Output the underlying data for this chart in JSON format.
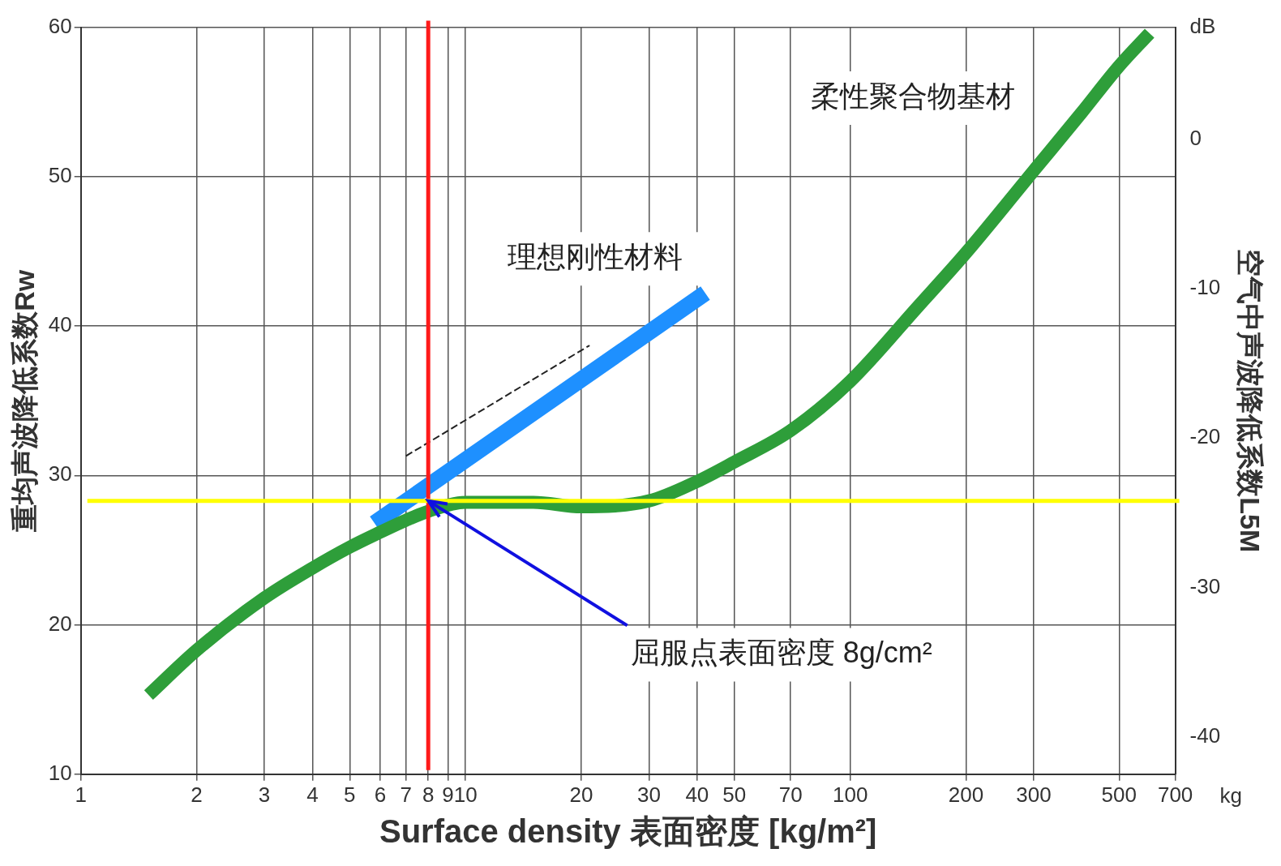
{
  "chart_data": {
    "type": "line",
    "xlabel": "Surface density 表面密度 [kg/m²]",
    "ylabel": "重均声波降低系数Rw",
    "y2label": "空气中声波降低系数L5M",
    "log": "x",
    "grid": true,
    "legend": false,
    "marker": "none",
    "xlim": [
      1,
      700
    ],
    "xticks": [
      1,
      2,
      3,
      4,
      5,
      6,
      7,
      8,
      9,
      10,
      20,
      30,
      40,
      50,
      70,
      100,
      200,
      300,
      500,
      700
    ],
    "ylim": [
      10,
      60
    ],
    "yticks": [
      10,
      20,
      30,
      40,
      50,
      60
    ],
    "y2lim": [
      -42.5,
      7.5
    ],
    "y2ticks": [
      -40,
      -30,
      -20,
      -10,
      0,
      {
        "value": 7.5,
        "label": "dB"
      }
    ],
    "series": [
      {
        "color": "#2e9e3a",
        "line_style": "solid",
        "x": [
          1.5,
          2,
          3,
          4,
          5,
          6,
          7,
          8,
          10,
          15,
          20,
          30,
          40,
          50,
          70,
          100,
          150,
          200,
          300,
          400,
          500,
          600
        ],
        "values": [
          15.3,
          18.3,
          21.8,
          23.8,
          25.2,
          26.2,
          27,
          27.6,
          28.2,
          28.2,
          27.9,
          28.3,
          29.6,
          30.9,
          33,
          36.3,
          41.3,
          44.9,
          50.4,
          54.3,
          57.4,
          59.6
        ]
      },
      {
        "color": "#1e90ff",
        "line_style": "solid",
        "x": [
          5.8,
          42
        ],
        "values": [
          26.8,
          42.2
        ]
      },
      {
        "color": "#222222",
        "line_style": "dashed",
        "x": [
          7,
          21
        ],
        "values": [
          31.3,
          38.7
        ]
      }
    ],
    "ref_lines": [
      {
        "axis": "x",
        "value": 8,
        "color": "#ff1a1a"
      },
      {
        "axis": "y",
        "value": 28.3,
        "color": "#ffff00"
      }
    ],
    "annotations": [
      "柔性聚合物基材",
      "理想刚性材料",
      {
        "text": "屈服点表面密度 8g/cm²",
        "x": 8,
        "y": 28.3
      },
      "kg"
    ]
  }
}
